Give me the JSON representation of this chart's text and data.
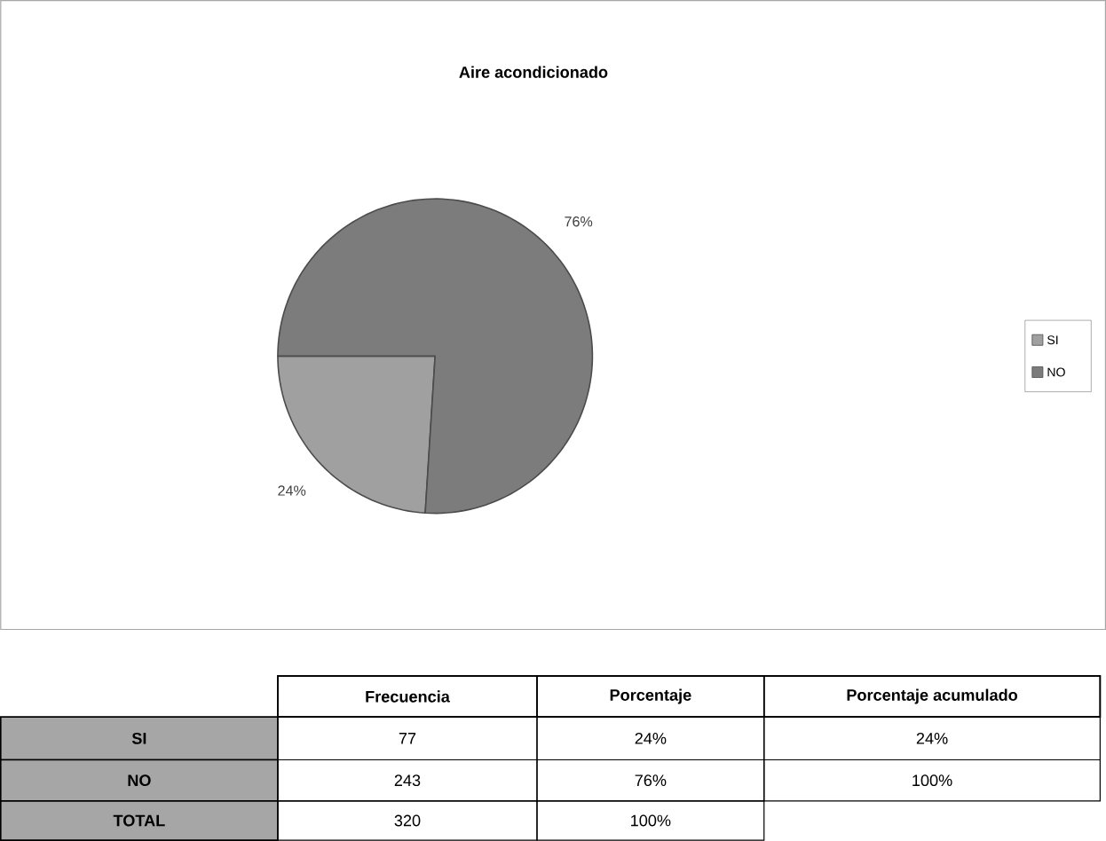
{
  "chart_data": {
    "type": "pie",
    "title": "Aire acondicionado",
    "categories": [
      "SI",
      "NO"
    ],
    "values": [
      24,
      76
    ],
    "colors": [
      "#a0a0a0",
      "#7c7c7c"
    ],
    "value_labels": [
      "24%",
      "76%"
    ],
    "legend": "right",
    "annotations": [
      "Frecuencia",
      "Porcentaje",
      "Porcentaje acumulado",
      "SI",
      "77",
      "24%",
      "24%",
      "NO",
      "243",
      "76%",
      "100%",
      "TOTAL",
      "320",
      "100%"
    ]
  }
}
